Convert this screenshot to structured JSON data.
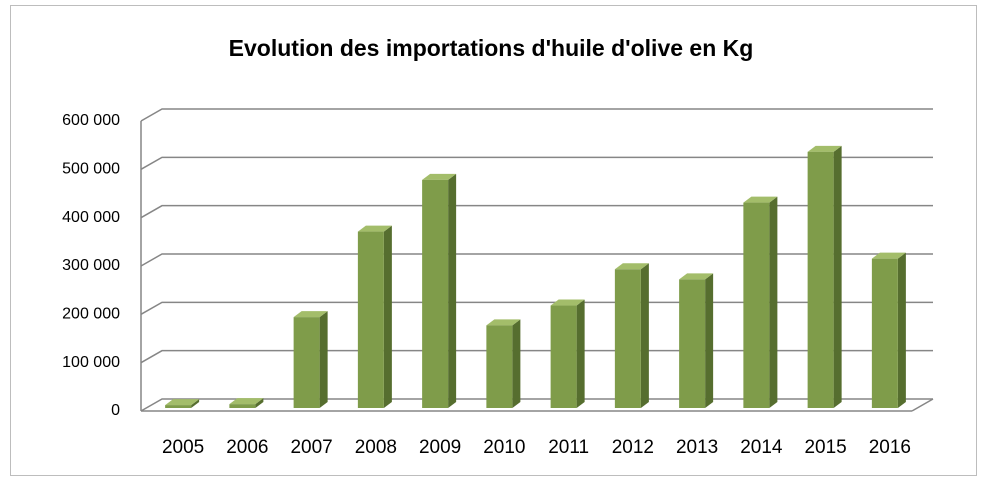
{
  "chart_data": {
    "type": "bar3d",
    "title": "Evolution des importations d'huile d'olive en Kg",
    "categories": [
      "2005",
      "2006",
      "2007",
      "2008",
      "2009",
      "2010",
      "2011",
      "2012",
      "2013",
      "2014",
      "2015",
      "2016"
    ],
    "values": [
      6000,
      8000,
      188000,
      365000,
      472000,
      171000,
      212000,
      287000,
      266000,
      425000,
      530000,
      309000
    ],
    "color": "#7f9c4a",
    "ylim": [
      0,
      600000
    ],
    "yticks": [
      0,
      {
        "value": 100000,
        "label": "100 000"
      },
      {
        "value": 200000,
        "label": "200 000"
      },
      {
        "value": 300000,
        "label": "300 000"
      },
      {
        "value": 400000,
        "label": "400 000"
      },
      {
        "value": 500000,
        "label": "500 000"
      },
      {
        "value": 600000,
        "label": "600 000"
      }
    ],
    "grid": true
  }
}
